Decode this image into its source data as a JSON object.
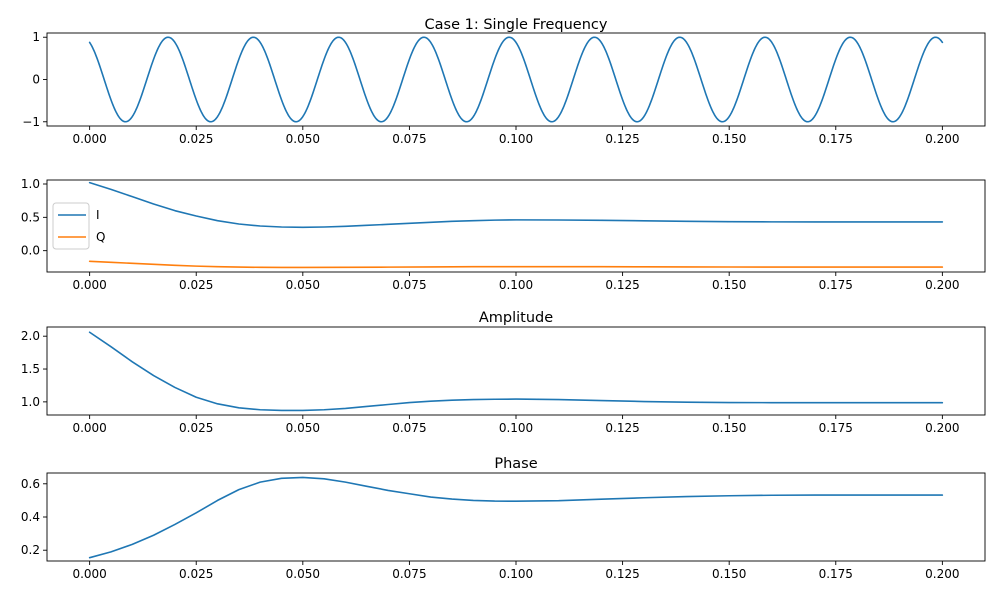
{
  "colors": {
    "blue": "#1f77b4",
    "orange": "#ff7f0e",
    "axes": "#000000",
    "background": "#ffffff",
    "legend_frame": "#cccccc"
  },
  "chart_data": [
    {
      "type": "line",
      "title": "Case 1: Single Frequency",
      "xlabel": "",
      "ylabel": "",
      "xlim": [
        -0.01,
        0.21
      ],
      "ylim": [
        -1.1,
        1.1
      ],
      "xticks": [
        "0.000",
        "0.025",
        "0.050",
        "0.075",
        "0.100",
        "0.125",
        "0.150",
        "0.175",
        "0.200"
      ],
      "yticks": [
        "−1",
        "0",
        "1"
      ],
      "ytick_values": [
        -1,
        0,
        1
      ],
      "grid": false,
      "series": [
        {
          "color": "#1f77b4",
          "function": "cos",
          "frequency_hz": 50,
          "phase_rad": 0.5,
          "x_range": [
            0,
            0.2
          ],
          "amplitude": 1
        }
      ]
    },
    {
      "type": "line",
      "title": "",
      "xlabel": "",
      "ylabel": "",
      "xlim": [
        -0.01,
        0.21
      ],
      "ylim": [
        -0.32,
        1.06
      ],
      "xticks": [
        "0.000",
        "0.025",
        "0.050",
        "0.075",
        "0.100",
        "0.125",
        "0.150",
        "0.175",
        "0.200"
      ],
      "yticks": [
        "0.0",
        "0.5",
        "1.0"
      ],
      "ytick_values": [
        0,
        0.5,
        1.0
      ],
      "legend": {
        "location": "center-left"
      },
      "grid": false,
      "series": [
        {
          "name": "I",
          "color": "#1f77b4",
          "x": [
            0.0,
            0.005,
            0.01,
            0.015,
            0.02,
            0.025,
            0.03,
            0.035,
            0.04,
            0.045,
            0.05,
            0.055,
            0.06,
            0.065,
            0.07,
            0.075,
            0.08,
            0.085,
            0.09,
            0.095,
            0.1,
            0.11,
            0.12,
            0.13,
            0.14,
            0.15,
            0.16,
            0.17,
            0.18,
            0.19,
            0.2
          ],
          "y": [
            1.02,
            0.92,
            0.81,
            0.7,
            0.6,
            0.52,
            0.45,
            0.4,
            0.37,
            0.355,
            0.35,
            0.355,
            0.365,
            0.38,
            0.395,
            0.41,
            0.425,
            0.44,
            0.45,
            0.458,
            0.462,
            0.46,
            0.455,
            0.448,
            0.44,
            0.435,
            0.432,
            0.431,
            0.431,
            0.431,
            0.431
          ]
        },
        {
          "name": "Q",
          "color": "#ff7f0e",
          "x": [
            0.0,
            0.005,
            0.01,
            0.015,
            0.02,
            0.025,
            0.03,
            0.035,
            0.04,
            0.045,
            0.05,
            0.06,
            0.07,
            0.08,
            0.09,
            0.1,
            0.11,
            0.12,
            0.13,
            0.14,
            0.15,
            0.16,
            0.17,
            0.18,
            0.19,
            0.2
          ],
          "y": [
            -0.16,
            -0.175,
            -0.19,
            -0.205,
            -0.22,
            -0.232,
            -0.24,
            -0.246,
            -0.25,
            -0.252,
            -0.252,
            -0.25,
            -0.247,
            -0.244,
            -0.241,
            -0.24,
            -0.24,
            -0.241,
            -0.242,
            -0.244,
            -0.245,
            -0.246,
            -0.246,
            -0.246,
            -0.246,
            -0.246
          ]
        }
      ]
    },
    {
      "type": "line",
      "title": "Amplitude",
      "xlabel": "",
      "ylabel": "",
      "xlim": [
        -0.01,
        0.21
      ],
      "ylim": [
        0.8,
        2.14
      ],
      "xticks": [
        "0.000",
        "0.025",
        "0.050",
        "0.075",
        "0.100",
        "0.125",
        "0.150",
        "0.175",
        "0.200"
      ],
      "yticks": [
        "1.0",
        "1.5",
        "2.0"
      ],
      "ytick_values": [
        1.0,
        1.5,
        2.0
      ],
      "grid": false,
      "series": [
        {
          "color": "#1f77b4",
          "x": [
            0.0,
            0.005,
            0.01,
            0.015,
            0.02,
            0.025,
            0.03,
            0.035,
            0.04,
            0.045,
            0.05,
            0.055,
            0.06,
            0.065,
            0.07,
            0.075,
            0.08,
            0.085,
            0.09,
            0.095,
            0.1,
            0.11,
            0.12,
            0.13,
            0.14,
            0.15,
            0.16,
            0.17,
            0.18,
            0.19,
            0.2
          ],
          "y": [
            2.06,
            1.84,
            1.61,
            1.4,
            1.22,
            1.07,
            0.97,
            0.91,
            0.88,
            0.87,
            0.87,
            0.88,
            0.9,
            0.93,
            0.96,
            0.99,
            1.01,
            1.025,
            1.035,
            1.04,
            1.042,
            1.035,
            1.02,
            1.005,
            0.995,
            0.99,
            0.988,
            0.987,
            0.987,
            0.987,
            0.987
          ]
        }
      ]
    },
    {
      "type": "line",
      "title": "Phase",
      "xlabel": "",
      "ylabel": "",
      "xlim": [
        -0.01,
        0.21
      ],
      "ylim": [
        0.135,
        0.665
      ],
      "xticks": [
        "0.000",
        "0.025",
        "0.050",
        "0.075",
        "0.100",
        "0.125",
        "0.150",
        "0.175",
        "0.200"
      ],
      "yticks": [
        "0.2",
        "0.4",
        "0.6"
      ],
      "ytick_values": [
        0.2,
        0.4,
        0.6
      ],
      "grid": false,
      "series": [
        {
          "color": "#1f77b4",
          "x": [
            0.0,
            0.005,
            0.01,
            0.015,
            0.02,
            0.025,
            0.03,
            0.035,
            0.04,
            0.045,
            0.05,
            0.055,
            0.06,
            0.065,
            0.07,
            0.075,
            0.08,
            0.085,
            0.09,
            0.095,
            0.1,
            0.11,
            0.12,
            0.13,
            0.14,
            0.15,
            0.16,
            0.17,
            0.18,
            0.19,
            0.2
          ],
          "y": [
            0.155,
            0.19,
            0.235,
            0.29,
            0.355,
            0.425,
            0.5,
            0.565,
            0.61,
            0.633,
            0.638,
            0.63,
            0.61,
            0.585,
            0.56,
            0.54,
            0.52,
            0.508,
            0.5,
            0.496,
            0.495,
            0.498,
            0.507,
            0.516,
            0.523,
            0.528,
            0.531,
            0.532,
            0.532,
            0.532,
            0.532
          ]
        }
      ]
    }
  ]
}
